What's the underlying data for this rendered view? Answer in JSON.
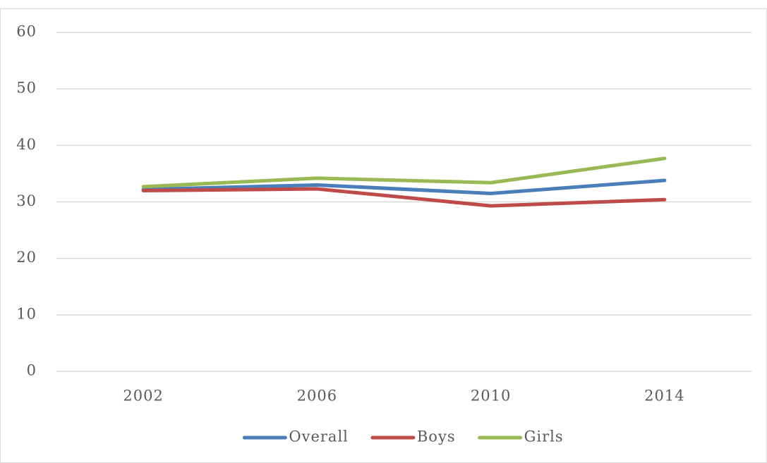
{
  "chart_data": {
    "type": "line",
    "categories": [
      "2002",
      "2006",
      "2010",
      "2014"
    ],
    "series": [
      {
        "name": "Overall",
        "color": "#4a7ebb",
        "values": [
          32.2,
          33.0,
          31.5,
          33.8
        ]
      },
      {
        "name": "Boys",
        "color": "#be4b48",
        "values": [
          32.0,
          32.3,
          29.3,
          30.4
        ]
      },
      {
        "name": "Girls",
        "color": "#98b954",
        "values": [
          32.7,
          34.2,
          33.4,
          37.7
        ]
      }
    ],
    "ylim": [
      0,
      60
    ],
    "yticks": [
      0,
      10,
      20,
      30,
      40,
      50,
      60
    ],
    "grid": true,
    "legend": "bottom"
  }
}
